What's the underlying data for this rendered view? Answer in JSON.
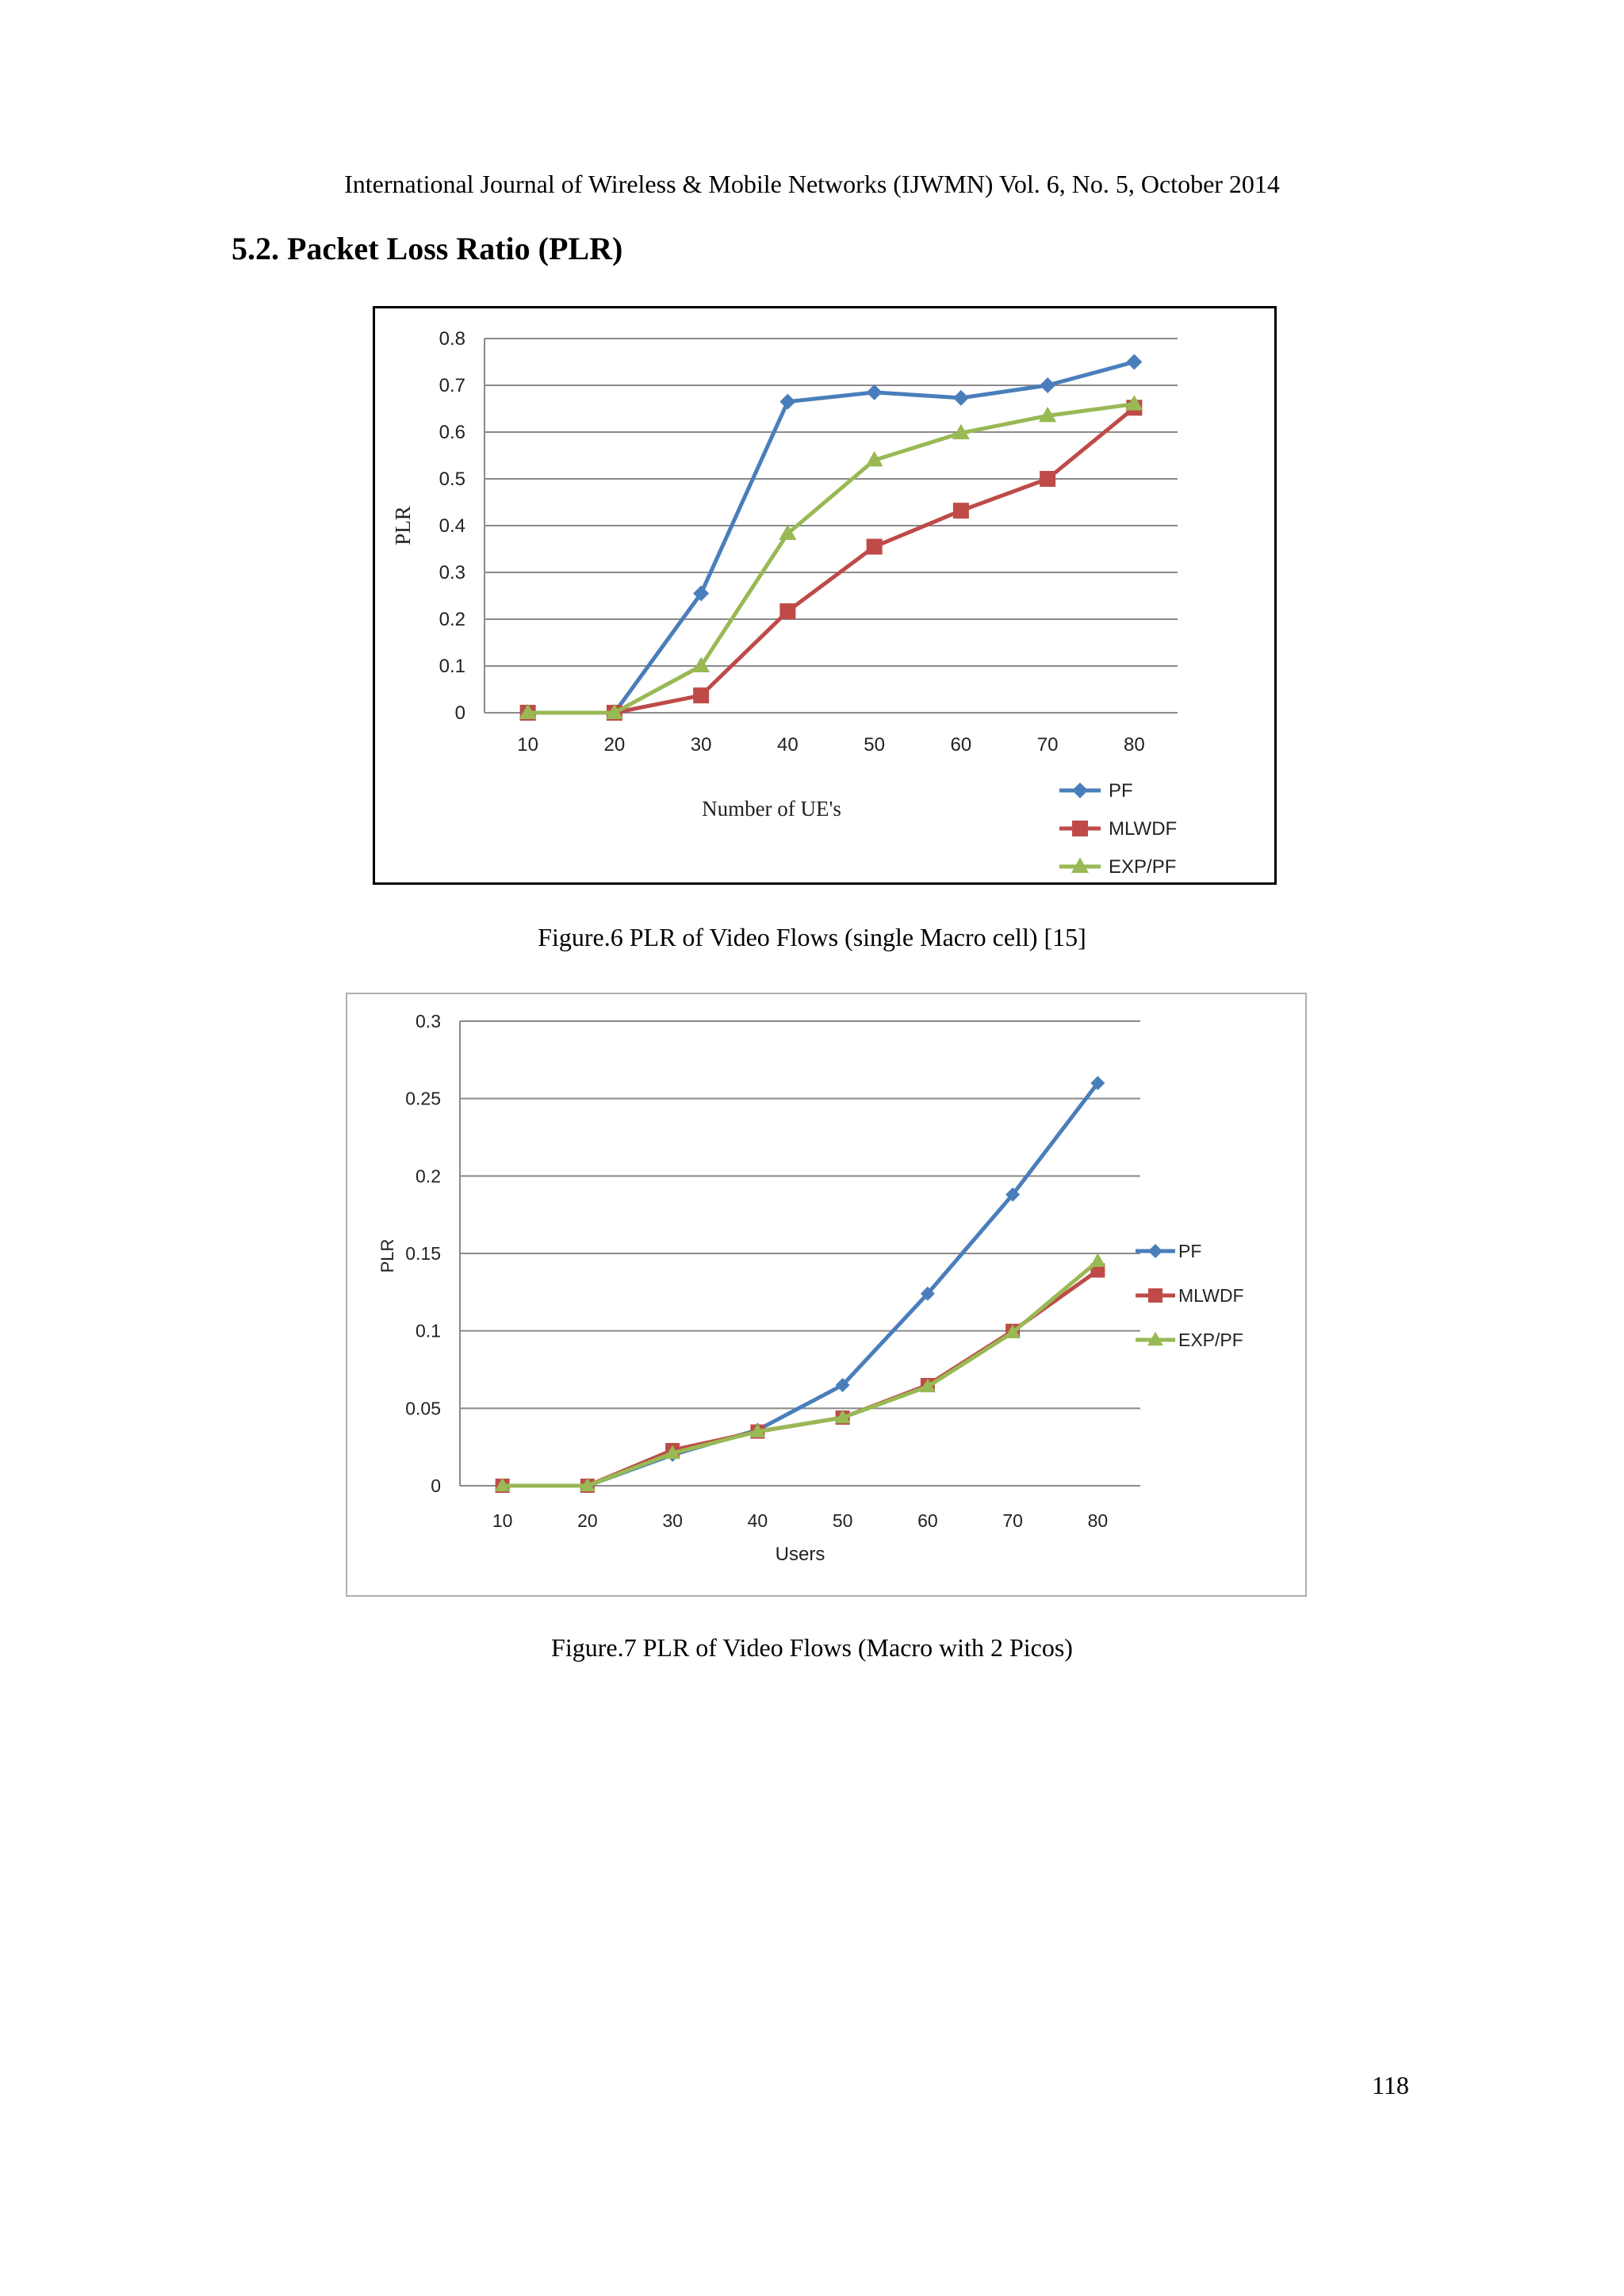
{
  "header": {
    "running_title": "International Journal of Wireless & Mobile Networks (IJWMN) Vol. 6, No. 5, October 2014"
  },
  "section": {
    "heading": "5.2. Packet Loss Ratio (PLR)"
  },
  "figures": {
    "fig6_caption": "Figure.6 PLR of Video Flows (single Macro cell) [15]",
    "fig7_caption": "Figure.7 PLR of Video Flows (Macro with 2 Picos)"
  },
  "page": {
    "number": "118"
  },
  "colors": {
    "PF": "#4a7ebb",
    "MLWDF": "#be4b48",
    "EXP/PF": "#98b954"
  },
  "chart_data": [
    {
      "type": "line",
      "title": "",
      "xlabel": "Number of UE's",
      "ylabel": "PLR",
      "categories": [
        "10",
        "20",
        "30",
        "40",
        "50",
        "60",
        "70",
        "80"
      ],
      "ylim": [
        0,
        0.8
      ],
      "yticks": [
        "0",
        "0.1",
        "0.2",
        "0.3",
        "0.4",
        "0.5",
        "0.6",
        "0.7",
        "0.8"
      ],
      "grid": true,
      "legend": "bottom-right",
      "series": [
        {
          "name": "PF",
          "marker": "diamond",
          "values": [
            0,
            0,
            0.255,
            0.665,
            0.685,
            0.673,
            0.7,
            0.75
          ]
        },
        {
          "name": "MLWDF",
          "marker": "square",
          "values": [
            0,
            0,
            0.037,
            0.217,
            0.355,
            0.432,
            0.5,
            0.652
          ]
        },
        {
          "name": "EXP/PF",
          "marker": "triangle",
          "values": [
            0,
            0,
            0.1,
            0.383,
            0.54,
            0.598,
            0.635,
            0.66
          ]
        }
      ]
    },
    {
      "type": "line",
      "title": "",
      "xlabel": "Users",
      "ylabel": "PLR",
      "categories": [
        "10",
        "20",
        "30",
        "40",
        "50",
        "60",
        "70",
        "80"
      ],
      "ylim": [
        0,
        0.3
      ],
      "yticks": [
        "0",
        "0.05",
        "0.1",
        "0.15",
        "0.2",
        "0.25",
        "0.3"
      ],
      "grid": true,
      "legend": "right",
      "series": [
        {
          "name": "PF",
          "marker": "diamond",
          "values": [
            0,
            0,
            0.02,
            0.036,
            0.065,
            0.124,
            0.188,
            0.26
          ]
        },
        {
          "name": "MLWDF",
          "marker": "square",
          "values": [
            0,
            0,
            0.023,
            0.035,
            0.044,
            0.065,
            0.1,
            0.139
          ]
        },
        {
          "name": "EXP/PF",
          "marker": "triangle",
          "values": [
            0,
            0,
            0.021,
            0.035,
            0.044,
            0.064,
            0.099,
            0.145
          ]
        }
      ]
    }
  ]
}
